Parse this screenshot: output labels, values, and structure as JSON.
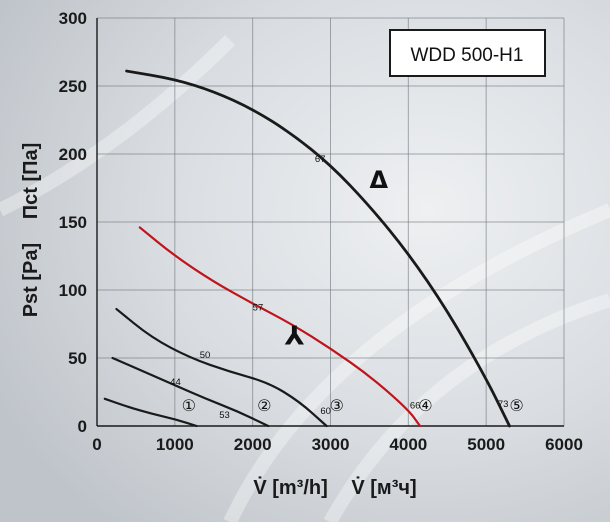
{
  "chart_data": {
    "type": "line",
    "title": "WDD 500-H1",
    "xlabel": "V̇ [m³/h]",
    "xlabel_ru": "V̇ [м³ч]",
    "ylabel": "Pst [Pa]",
    "ylabel_ru": "Пct [Па]",
    "xlim": [
      0,
      6000
    ],
    "ylim": [
      0,
      300
    ],
    "xticks": [
      "0",
      "1000",
      "2000",
      "3000",
      "4000",
      "5000",
      "6000"
    ],
    "yticks": [
      "0",
      "50",
      "100",
      "150",
      "200",
      "250",
      "300"
    ],
    "grid": true,
    "curve_colors": {
      "default": "#1a1a1a",
      "highlight": "#c0141c"
    },
    "series": [
      {
        "mark": "①",
        "label": "53",
        "color": "#1a1a1a",
        "x": [
          100,
          400,
          700,
          1000,
          1280
        ],
        "y": [
          20,
          14,
          9,
          5,
          0
        ]
      },
      {
        "mark": "②",
        "label": "44",
        "color": "#1a1a1a",
        "x": [
          200,
          600,
          1000,
          1400,
          1800,
          2200
        ],
        "y": [
          50,
          40,
          30,
          20,
          11,
          0
        ]
      },
      {
        "mark": "③",
        "label": "50",
        "color": "#1a1a1a",
        "x": [
          250,
          700,
          1200,
          1700,
          2200,
          2600,
          2950
        ],
        "y": [
          86,
          65,
          50,
          40,
          32,
          18,
          0
        ]
      },
      {
        "mark": "④",
        "label": "57",
        "color": "#c0141c",
        "x": [
          550,
          1000,
          1500,
          2000,
          2500,
          3000,
          3500,
          4000,
          4150
        ],
        "y": [
          146,
          125,
          106,
          90,
          75,
          57,
          37,
          12,
          0
        ]
      },
      {
        "mark": "⑤",
        "label": "67",
        "color": "#1a1a1a",
        "x": [
          380,
          1000,
          1500,
          2000,
          2500,
          3000,
          3500,
          4000,
          4500,
          5000,
          5300
        ],
        "y": [
          261,
          255,
          246,
          233,
          215,
          192,
          162,
          127,
          85,
          35,
          0
        ]
      }
    ],
    "annotations": [
      {
        "text": "60",
        "x": 2870,
        "y": 9
      },
      {
        "text": "66",
        "x": 4020,
        "y": 13
      },
      {
        "text": "73",
        "x": 5150,
        "y": 14
      }
    ],
    "mode_labels": [
      {
        "text": "Δ",
        "x": 3620,
        "y": 175
      },
      {
        "text": "⅄",
        "x": 2540,
        "y": 60
      }
    ]
  }
}
